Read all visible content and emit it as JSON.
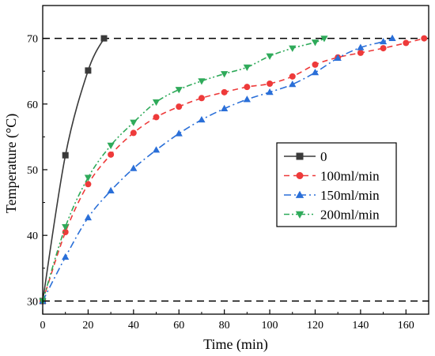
{
  "chart_data": {
    "type": "line",
    "title": "",
    "xlabel": "Time (min)",
    "ylabel": "Temperature (°C)",
    "xlim": [
      0,
      170
    ],
    "ylim": [
      28,
      75
    ],
    "xticks": [
      0,
      20,
      40,
      60,
      80,
      100,
      120,
      140,
      160
    ],
    "yticks": [
      30,
      40,
      50,
      60,
      70
    ],
    "grid": false,
    "legend_position": "center-right",
    "reference_lines": [
      {
        "y": 70,
        "style": "dashed",
        "color": "#000000"
      },
      {
        "y": 30,
        "style": "dashed",
        "color": "#000000"
      }
    ],
    "series": [
      {
        "name": "0",
        "color": "#3a3a3a",
        "marker": "square",
        "line_style": "solid",
        "smooth": true,
        "x": [
          0,
          10,
          20,
          27
        ],
        "y": [
          30,
          52.2,
          65.1,
          70
        ]
      },
      {
        "name": "100ml/min",
        "color": "#ee3a3a",
        "marker": "circle",
        "line_style": "dashed",
        "smooth": true,
        "x": [
          0,
          10,
          20,
          30,
          40,
          50,
          60,
          70,
          80,
          90,
          100,
          110,
          120,
          130,
          140,
          150,
          160,
          168
        ],
        "y": [
          30,
          40.5,
          47.8,
          52.3,
          55.6,
          58.0,
          59.6,
          60.9,
          61.8,
          62.6,
          63.1,
          64.2,
          66.0,
          67.1,
          67.8,
          68.5,
          69.3,
          70
        ]
      },
      {
        "name": "150ml/min",
        "color": "#2a6fd8",
        "marker": "triangle-up",
        "line_style": "dash-dot",
        "smooth": true,
        "x": [
          0,
          10,
          20,
          30,
          40,
          50,
          60,
          70,
          80,
          90,
          100,
          110,
          120,
          130,
          140,
          150,
          154
        ],
        "y": [
          30,
          36.7,
          42.7,
          46.8,
          50.2,
          53.0,
          55.5,
          57.6,
          59.3,
          60.7,
          61.8,
          63.0,
          64.8,
          67.0,
          68.6,
          69.5,
          70
        ]
      },
      {
        "name": "200ml/min",
        "color": "#2faa5a",
        "marker": "triangle-down",
        "line_style": "dash-dot-dot",
        "smooth": true,
        "x": [
          0,
          10,
          20,
          30,
          40,
          50,
          60,
          70,
          80,
          90,
          100,
          110,
          120,
          124
        ],
        "y": [
          30,
          41.3,
          48.8,
          53.7,
          57.2,
          60.3,
          62.2,
          63.5,
          64.6,
          65.6,
          67.3,
          68.5,
          69.4,
          70
        ]
      }
    ]
  }
}
